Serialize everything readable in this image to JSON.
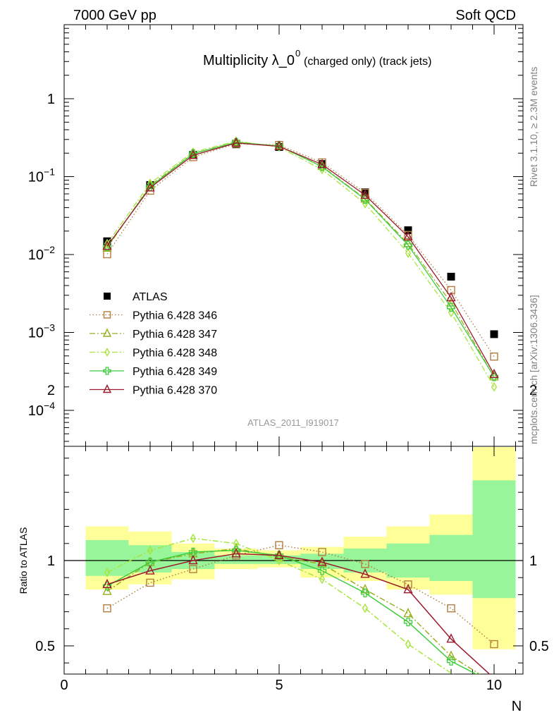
{
  "header": {
    "left": "7000 GeV pp",
    "right": "Soft QCD"
  },
  "title": {
    "main": "Multiplicity λ_0",
    "superscript": "0",
    "suffix": "(charged only) (track jets)"
  },
  "side_labels": {
    "rivet": "Rivet 3.1.10, ≥ 2.3M events",
    "mcplots": "mcplots.cern.ch [arXiv:1306.3436]"
  },
  "watermark": "ATLAS_2011_I919017",
  "ratio_ylabel": "Ratio to ATLAS",
  "xlabel": "N",
  "chart_data": {
    "type": "line",
    "x_range": [
      0,
      10.65
    ],
    "x_ticks": [
      "0",
      "5",
      "10"
    ],
    "top_panel": {
      "y_scale": "log",
      "y_range": [
        3e-05,
        10
      ],
      "y_tick_labels": [
        {
          "value": 1,
          "base": "1",
          "exp": ""
        },
        {
          "value": 0.1,
          "base": "10",
          "exp": "−1"
        },
        {
          "value": 0.01,
          "base": "10",
          "exp": "−2"
        },
        {
          "value": 0.001,
          "base": "10",
          "exp": "−3"
        },
        {
          "value": 0.0001,
          "base": "10",
          "exp": "−4"
        }
      ]
    },
    "bottom_panel": {
      "y_scale": "linear",
      "y_range": [
        0.34,
        2.3
      ],
      "y_ticks": [
        "0.5",
        "1",
        "2"
      ],
      "data_band_yellow": [
        [
          0.83,
          1.2
        ],
        [
          0.86,
          1.17
        ],
        [
          0.89,
          1.1
        ],
        [
          0.95,
          1.07
        ],
        [
          0.96,
          1.06
        ],
        [
          0.9,
          1.08
        ],
        [
          0.88,
          1.14
        ],
        [
          0.83,
          1.2
        ],
        [
          0.8,
          1.27
        ],
        [
          0.48,
          1.83
        ]
      ],
      "data_band_green": [
        [
          0.91,
          1.12
        ],
        [
          0.93,
          1.09
        ],
        [
          0.95,
          1.05
        ],
        [
          0.98,
          1.03
        ],
        [
          0.98,
          1.03
        ],
        [
          0.95,
          1.04
        ],
        [
          0.93,
          1.07
        ],
        [
          0.9,
          1.1
        ],
        [
          0.88,
          1.15
        ],
        [
          0.78,
          1.47
        ]
      ]
    },
    "x": [
      1,
      2,
      3,
      4,
      5,
      6,
      7,
      8,
      9,
      10
    ],
    "series": [
      {
        "name": "ATLAS",
        "color": "#000000",
        "marker": "square-filled",
        "line": "none",
        "values": [
          0.0148,
          0.078,
          0.19,
          0.26,
          0.24,
          0.145,
          0.063,
          0.0205,
          0.0052,
          0.00095
        ],
        "ratio": []
      },
      {
        "name": "Pythia 6.428 346",
        "color": "#b37e3f",
        "marker": "square-open",
        "line": "dotted",
        "values": [
          0.0101,
          0.066,
          0.178,
          0.265,
          0.255,
          0.152,
          0.062,
          0.0178,
          0.0035,
          0.00049
        ],
        "ratio": [
          0.72,
          0.87,
          0.95,
          1.03,
          1.09,
          1.05,
          0.98,
          0.86,
          0.72,
          0.51
        ]
      },
      {
        "name": "Pythia 6.428 347",
        "color": "#9aae1e",
        "marker": "triangle-open",
        "line": "dashdot",
        "values": [
          0.0121,
          0.077,
          0.198,
          0.278,
          0.245,
          0.136,
          0.052,
          0.0138,
          0.0024,
          0.00027
        ],
        "ratio": [
          0.82,
          0.99,
          1.04,
          1.07,
          1.02,
          0.98,
          0.83,
          0.69,
          0.44,
          0.28
        ]
      },
      {
        "name": "Pythia 6.428 348",
        "color": "#a6e63c",
        "marker": "diamond-open",
        "line": "dashdot",
        "values": [
          0.0138,
          0.082,
          0.206,
          0.285,
          0.24,
          0.123,
          0.045,
          0.0104,
          0.0018,
          0.0002
        ],
        "ratio": [
          0.93,
          1.06,
          1.13,
          1.1,
          1.0,
          0.89,
          0.72,
          0.51,
          0.34,
          0.21
        ]
      },
      {
        "name": "Pythia 6.428 349",
        "color": "#3ecc3e",
        "marker": "cross-open",
        "line": "solid",
        "values": [
          0.0126,
          0.074,
          0.197,
          0.275,
          0.247,
          0.134,
          0.051,
          0.0132,
          0.0021,
          0.00027
        ],
        "ratio": [
          0.85,
          0.99,
          1.05,
          1.06,
          1.03,
          0.94,
          0.81,
          0.64,
          0.41,
          0.28
        ]
      },
      {
        "name": "Pythia 6.428 370",
        "color": "#9b1a2e",
        "marker": "triangle-open",
        "line": "solid",
        "values": [
          0.0128,
          0.072,
          0.188,
          0.27,
          0.245,
          0.143,
          0.058,
          0.0169,
          0.0028,
          0.00029
        ],
        "ratio": [
          0.86,
          0.94,
          1.0,
          1.04,
          1.03,
          0.99,
          0.92,
          0.83,
          0.54,
          0.31
        ]
      }
    ],
    "legend_position": "left"
  }
}
